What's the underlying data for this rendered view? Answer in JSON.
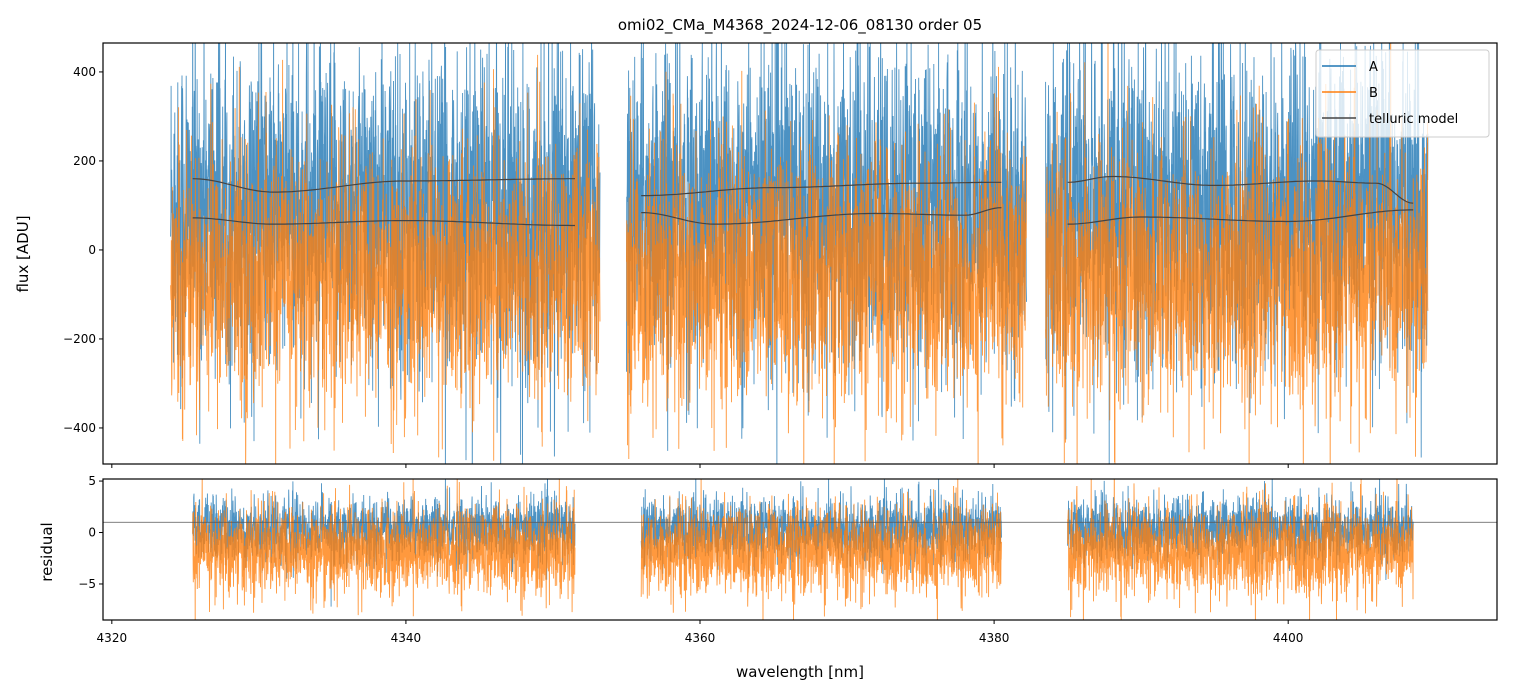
{
  "chart_data": {
    "type": "line",
    "title": "omi02_CMa_M4368_2024-12-06_08130  order 05",
    "xlabel": "wavelength [nm]",
    "panels": [
      {
        "name": "flux",
        "ylabel": "flux [ADU]",
        "xlim": [
          4319.4,
          4414.2
        ],
        "ylim": [
          -481,
          465
        ],
        "yticks": [
          -400,
          -200,
          0,
          200,
          400
        ],
        "ytick_labels": [
          "−400",
          "−200",
          "0",
          "200",
          "400"
        ],
        "segments": [
          [
            4324.0,
            4353.2
          ],
          [
            4355.0,
            4382.2
          ],
          [
            4383.5,
            4409.5
          ]
        ],
        "series": [
          {
            "name": "A",
            "color": "#1f77b4",
            "mean": 90,
            "spread": 190
          },
          {
            "name": "B",
            "color": "#ff7f0e",
            "mean": -60,
            "spread": 150
          }
        ],
        "telluric_model": {
          "name": "telluric model",
          "color": "#444444",
          "curves": [
            {
              "x": [
                4325.5,
                4331,
                4340,
                4351.5
              ],
              "y": [
                160,
                130,
                155,
                160
              ]
            },
            {
              "x": [
                4325.5,
                4331,
                4340,
                4351.5
              ],
              "y": [
                72,
                58,
                66,
                55
              ]
            },
            {
              "x": [
                4356,
                4365,
                4375,
                4380.5
              ],
              "y": [
                122,
                140,
                150,
                152
              ]
            },
            {
              "x": [
                4356,
                4361,
                4372,
                4378,
                4380.5
              ],
              "y": [
                84,
                58,
                82,
                78,
                95
              ]
            },
            {
              "x": [
                4385,
                4388,
                4395,
                4402,
                4406,
                4408.5
              ],
              "y": [
                152,
                165,
                145,
                155,
                150,
                105
              ]
            },
            {
              "x": [
                4385,
                4390,
                4400,
                4408.5
              ],
              "y": [
                58,
                74,
                64,
                90
              ]
            }
          ]
        }
      },
      {
        "name": "residual",
        "ylabel": "residual",
        "xlim": [
          4319.4,
          4414.2
        ],
        "ylim": [
          -8.5,
          5.2
        ],
        "yticks": [
          -5,
          0,
          5
        ],
        "ytick_labels": [
          "−5",
          "0",
          "5"
        ],
        "segments": [
          [
            4325.5,
            4351.5
          ],
          [
            4356.0,
            4380.5
          ],
          [
            4385.0,
            4408.5
          ]
        ],
        "series": [
          {
            "name": "A",
            "color": "#1f77b4",
            "mean": 0.3,
            "spread": 1.6
          },
          {
            "name": "B",
            "color": "#ff7f0e",
            "mean": -1.8,
            "spread": 2.3
          }
        ],
        "reference_line": 1
      }
    ],
    "xticks": [
      4320,
      4340,
      4360,
      4380,
      4400
    ],
    "xtick_labels": [
      "4320",
      "4340",
      "4360",
      "4380",
      "4400"
    ],
    "legend": {
      "placement": "top-right",
      "entries": [
        "A",
        "B",
        "telluric model"
      ]
    }
  }
}
